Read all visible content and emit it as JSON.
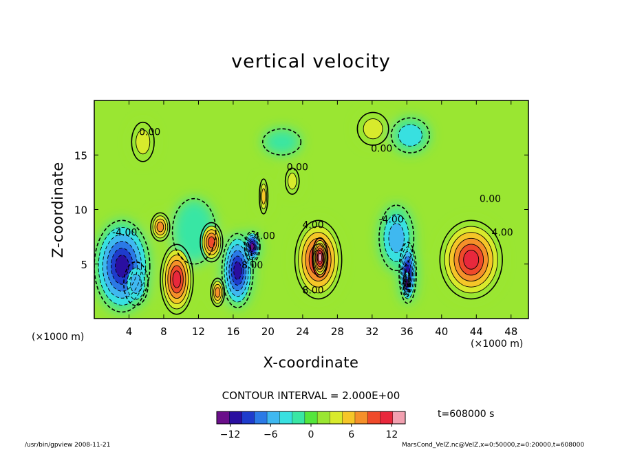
{
  "chart_data": {
    "type": "heatmap",
    "title": "vertical velocity",
    "xlabel": "X-coordinate",
    "ylabel": "Z-coordinate",
    "x_unit_label": "(×1000 m)",
    "xlim": [
      0,
      50
    ],
    "ylim": [
      0,
      20
    ],
    "x_ticks": [
      4,
      8,
      12,
      16,
      20,
      24,
      28,
      32,
      36,
      40,
      44,
      48
    ],
    "y_ticks": [
      5,
      10,
      15
    ],
    "contour_interval_label": "CONTOUR INTERVAL = 2.000E+00",
    "time_label": "t=608000 s",
    "colorbar": {
      "min": -14,
      "max": 14,
      "ticks": [
        -12,
        -6,
        0,
        6,
        12
      ],
      "colors": [
        "#6a0f8a",
        "#2a0fa0",
        "#1e3ccc",
        "#2b7ae6",
        "#3fb8f0",
        "#38e0e0",
        "#39e6a4",
        "#54e63c",
        "#9ae632",
        "#d8ea2c",
        "#f5c628",
        "#f5902a",
        "#ef4a2a",
        "#e8283c",
        "#f2a0b0"
      ]
    },
    "contour_labels": [
      {
        "x": 3.5,
        "y": 7.6,
        "text": "-4.00"
      },
      {
        "x": 6.4,
        "y": 16.8,
        "text": "0.00"
      },
      {
        "x": 19.6,
        "y": 7.3,
        "text": "4.00"
      },
      {
        "x": 18.2,
        "y": 4.6,
        "text": "8.00"
      },
      {
        "x": 23.4,
        "y": 13.6,
        "text": "0.00"
      },
      {
        "x": 25.2,
        "y": 8.3,
        "text": "4.00"
      },
      {
        "x": 25.2,
        "y": 2.3,
        "text": "8.00"
      },
      {
        "x": 33.1,
        "y": 15.3,
        "text": "0.00"
      },
      {
        "x": 34.2,
        "y": 8.8,
        "text": "-4.00"
      },
      {
        "x": 45.6,
        "y": 10.7,
        "text": "0.00"
      },
      {
        "x": 47.0,
        "y": 7.6,
        "text": "4.00"
      }
    ],
    "cells": [
      {
        "x": 3.2,
        "y": 4.8,
        "sx": 3.2,
        "sy": 4.2,
        "value": -11
      },
      {
        "x": 4.8,
        "y": 3.2,
        "sx": 1.4,
        "sy": 2.0,
        "value": -6
      },
      {
        "x": 9.5,
        "y": 3.6,
        "sx": 1.9,
        "sy": 3.2,
        "value": 11
      },
      {
        "x": 13.5,
        "y": 7.0,
        "sx": 1.3,
        "sy": 1.8,
        "value": 9
      },
      {
        "x": 14.2,
        "y": 2.4,
        "sx": 0.8,
        "sy": 1.3,
        "value": 8
      },
      {
        "x": 16.5,
        "y": 4.4,
        "sx": 1.8,
        "sy": 3.4,
        "value": -12
      },
      {
        "x": 18.2,
        "y": 6.6,
        "sx": 0.9,
        "sy": 1.4,
        "value": -14
      },
      {
        "x": 19.5,
        "y": 11.2,
        "sx": 0.5,
        "sy": 1.6,
        "value": 5
      },
      {
        "x": 25.8,
        "y": 5.4,
        "sx": 2.7,
        "sy": 3.6,
        "value": 11
      },
      {
        "x": 26.0,
        "y": 5.6,
        "sx": 0.9,
        "sy": 1.8,
        "value": 14
      },
      {
        "x": 34.8,
        "y": 7.4,
        "sx": 2.0,
        "sy": 3.0,
        "value": -5
      },
      {
        "x": 36.1,
        "y": 4.2,
        "sx": 1.0,
        "sy": 2.8,
        "value": -12
      },
      {
        "x": 36.0,
        "y": 3.2,
        "sx": 0.4,
        "sy": 1.2,
        "value": -14
      },
      {
        "x": 43.4,
        "y": 5.4,
        "sx": 3.6,
        "sy": 3.6,
        "value": 11
      },
      {
        "x": 7.6,
        "y": 8.4,
        "sx": 1.1,
        "sy": 1.3,
        "value": 7
      },
      {
        "x": 5.6,
        "y": 16.2,
        "sx": 1.3,
        "sy": 1.8,
        "value": 4
      },
      {
        "x": 21.6,
        "y": 16.2,
        "sx": 2.2,
        "sy": 1.2,
        "value": -1
      },
      {
        "x": 32.1,
        "y": 17.4,
        "sx": 1.8,
        "sy": 1.5,
        "value": 3
      },
      {
        "x": 36.4,
        "y": 16.8,
        "sx": 2.2,
        "sy": 1.6,
        "value": -3
      },
      {
        "x": 22.8,
        "y": 12.6,
        "sx": 0.8,
        "sy": 1.2,
        "value": 3
      },
      {
        "x": 11.5,
        "y": 8.0,
        "sx": 2.5,
        "sy": 3.0,
        "value": -1
      }
    ]
  },
  "footer": {
    "left": "/usr/bin/gpview  2008-11-21",
    "right": "MarsCond_VelZ.nc@VelZ,x=0:50000,z=0:20000,t=608000"
  }
}
